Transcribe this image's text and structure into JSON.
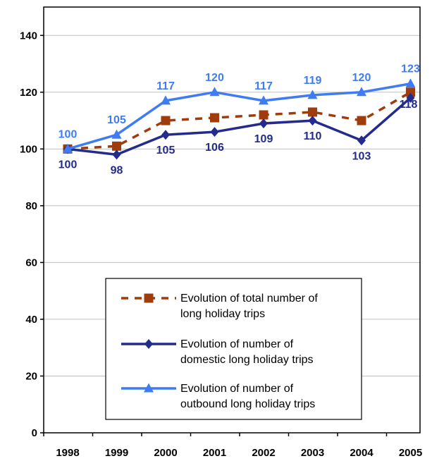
{
  "chart_data": {
    "type": "line",
    "categories": [
      "1998",
      "1999",
      "2000",
      "2001",
      "2002",
      "2003",
      "2004",
      "2005"
    ],
    "ylim": [
      0,
      150
    ],
    "yticks": [
      0,
      20,
      40,
      60,
      80,
      100,
      120,
      140
    ],
    "grid": true,
    "legend_position": "bottom-center",
    "series": [
      {
        "name": "Evolution of total number of long holiday trips",
        "legend_lines": [
          "Evolution of total number of",
          "long holiday trips"
        ],
        "values": [
          100,
          101,
          110,
          111,
          112,
          113,
          110,
          120
        ],
        "color": "#a03c0c",
        "dash": true,
        "marker": "square",
        "labels": null
      },
      {
        "name": "Evolution of number of domestic long holiday trips",
        "legend_lines": [
          "Evolution of number of",
          "domestic long holiday trips"
        ],
        "values": [
          100,
          98,
          105,
          106,
          109,
          110,
          103,
          118
        ],
        "color": "#232c8c",
        "dash": false,
        "marker": "diamond",
        "labels": [
          "100",
          "98",
          "105",
          "106",
          "109",
          "110",
          "103",
          "118"
        ],
        "label_position": "below"
      },
      {
        "name": "Evolution of number of outbound long holiday trips",
        "legend_lines": [
          "Evolution of number of",
          "outbound long holiday trips"
        ],
        "values": [
          100,
          105,
          117,
          120,
          117,
          119,
          120,
          123
        ],
        "color": "#3f7cf4",
        "dash": false,
        "marker": "triangle",
        "labels": [
          "100",
          "105",
          "117",
          "120",
          "117",
          "119",
          "120",
          "123"
        ],
        "label_position": "above"
      }
    ]
  }
}
